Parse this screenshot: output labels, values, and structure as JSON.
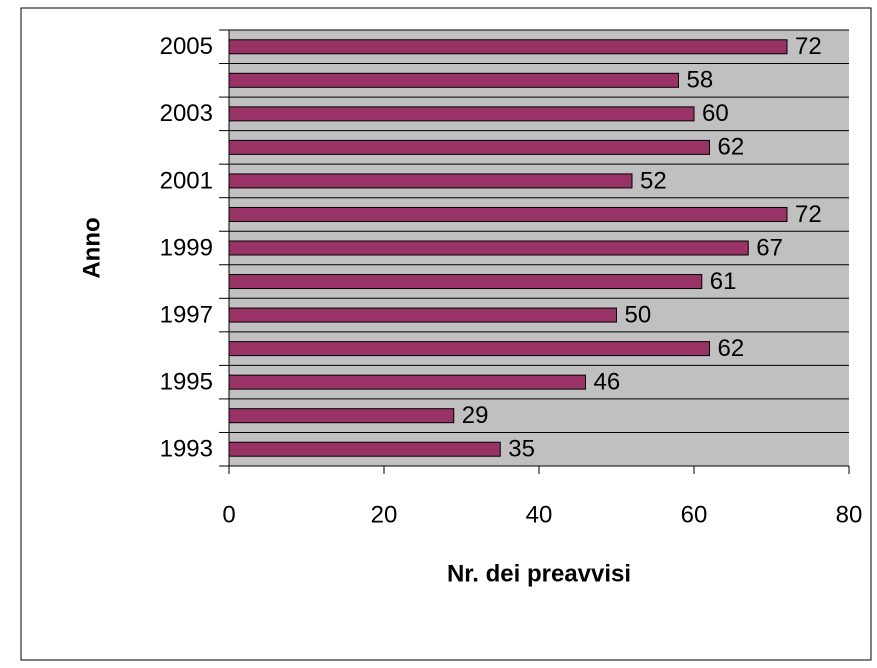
{
  "chart_data": {
    "type": "hbar",
    "categories": [
      "1993",
      null,
      "1995",
      null,
      "1997",
      null,
      "1999",
      null,
      "2001",
      null,
      "2003",
      null,
      "2005"
    ],
    "values": [
      35,
      29,
      46,
      62,
      50,
      61,
      67,
      72,
      52,
      62,
      60,
      58,
      72
    ],
    "color": "#993366",
    "plot_background": "#c0c0c0",
    "grid": true,
    "xlim": [
      0,
      80
    ],
    "xticks": [
      0,
      20,
      40,
      60,
      80
    ],
    "xlabel": "Nr. dei preavvisi",
    "ylabel": "Anno"
  }
}
